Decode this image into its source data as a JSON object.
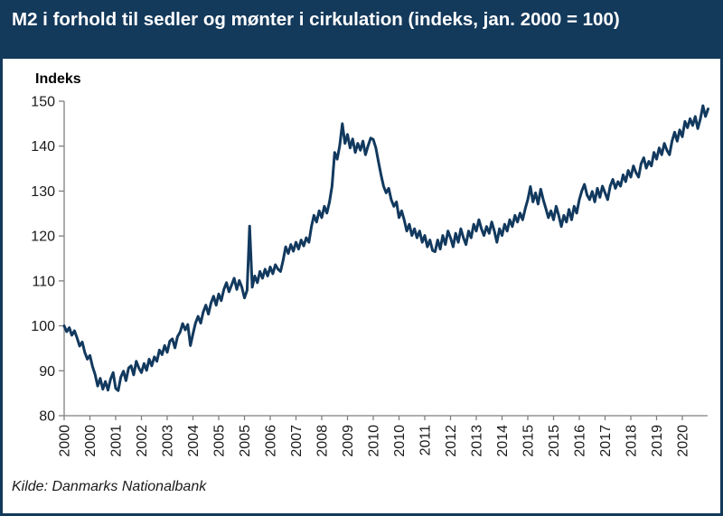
{
  "title": "M2 i forhold til sedler og mønter i cirkulation (indeks, jan. 2000 = 100)",
  "source": "Kilde: Danmarks Nationalbank",
  "colors": {
    "header_background": "#13395B",
    "border": "#13395B",
    "line": "#12395E",
    "axis": "#7F7F7F",
    "tick_label": "#1a1a1a",
    "background": "#FFFFFF"
  },
  "chart_data": {
    "type": "line",
    "title": "M2 i forhold til sedler og mønter i cirkulation (indeks, jan. 2000 = 100)",
    "xlabel": "",
    "ylabel": "Indeks",
    "ylim": [
      80,
      150
    ],
    "yticks": [
      80,
      90,
      100,
      110,
      120,
      130,
      140,
      150
    ],
    "grid": false,
    "legend_position": "none",
    "x_start": "2000-01",
    "x_frequency": "monthly",
    "xtick_interval_months": 10,
    "xtick_labels": [
      "2000",
      "2000",
      "2001",
      "2002",
      "2003",
      "2004",
      "2005",
      "2005",
      "2006",
      "2007",
      "2008",
      "2009",
      "2010",
      "2010",
      "2011",
      "2012",
      "2013",
      "2014",
      "2015",
      "2015",
      "2016",
      "2017",
      "2018",
      "2019",
      "2020"
    ],
    "series": [
      {
        "name": "M2 i forhold til sedler og mønter i cirkulation",
        "values": [
          100.0,
          98.7,
          99.6,
          97.9,
          98.9,
          97.3,
          95.5,
          96.4,
          94.1,
          92.6,
          93.4,
          91.0,
          89.2,
          86.6,
          88.3,
          85.9,
          87.6,
          85.7,
          88.1,
          89.6,
          86.1,
          85.6,
          88.6,
          89.9,
          87.8,
          90.6,
          91.1,
          89.1,
          92.1,
          90.6,
          89.6,
          91.6,
          90.1,
          92.6,
          91.1,
          93.1,
          92.1,
          94.6,
          93.6,
          95.6,
          94.1,
          96.6,
          97.1,
          95.1,
          97.6,
          98.6,
          100.5,
          99.1,
          100.3,
          95.6,
          98.2,
          100.6,
          102.1,
          100.6,
          103.1,
          104.6,
          102.6,
          105.1,
          106.6,
          104.6,
          107.1,
          105.6,
          108.1,
          109.6,
          107.6,
          109.1,
          110.6,
          108.1,
          110.1,
          108.6,
          106.2,
          107.9,
          122.2,
          108.6,
          111.1,
          109.6,
          112.1,
          110.6,
          112.6,
          111.1,
          113.1,
          111.6,
          113.6,
          112.6,
          112.1,
          114.6,
          117.6,
          116.1,
          118.1,
          116.6,
          118.6,
          117.1,
          119.1,
          117.8,
          119.6,
          118.6,
          122.1,
          124.6,
          123.1,
          125.6,
          124.1,
          126.6,
          125.1,
          127.6,
          131.1,
          138.6,
          137.1,
          140.1,
          145.0,
          140.6,
          142.6,
          139.6,
          141.6,
          138.6,
          140.6,
          139.1,
          141.1,
          138.1,
          140.1,
          141.8,
          141.5,
          139.6,
          136.6,
          133.6,
          131.1,
          129.6,
          130.6,
          128.1,
          126.6,
          127.6,
          124.1,
          125.6,
          123.6,
          121.1,
          122.6,
          120.1,
          121.6,
          119.6,
          121.1,
          118.6,
          120.1,
          117.6,
          119.1,
          116.8,
          116.5,
          119.1,
          117.1,
          120.1,
          118.1,
          121.1,
          119.6,
          117.6,
          120.6,
          118.6,
          121.6,
          119.6,
          118.1,
          121.1,
          119.6,
          122.6,
          121.1,
          123.6,
          121.6,
          120.1,
          122.1,
          120.6,
          123.1,
          121.1,
          118.6,
          121.6,
          120.1,
          122.6,
          121.1,
          123.6,
          122.1,
          124.6,
          123.1,
          125.1,
          123.6,
          126.1,
          128.1,
          131.0,
          127.6,
          129.6,
          127.1,
          130.4,
          128.1,
          126.1,
          124.1,
          125.6,
          123.6,
          126.6,
          124.6,
          122.1,
          124.6,
          123.1,
          125.9,
          123.6,
          126.6,
          125.1,
          128.1,
          130.1,
          131.5,
          129.1,
          128.1,
          129.9,
          127.6,
          130.6,
          128.6,
          131.1,
          129.6,
          128.1,
          131.1,
          132.6,
          130.6,
          132.1,
          131.1,
          133.6,
          132.1,
          134.6,
          133.1,
          135.6,
          134.1,
          133.1,
          136.1,
          137.4,
          135.1,
          136.6,
          135.6,
          138.6,
          137.1,
          139.6,
          138.1,
          140.6,
          139.1,
          138.1,
          141.1,
          143.1,
          141.1,
          143.6,
          142.1,
          145.5,
          144.1,
          146.1,
          144.6,
          146.6,
          143.9,
          146.1,
          149.0,
          146.6,
          148.3
        ]
      }
    ]
  }
}
